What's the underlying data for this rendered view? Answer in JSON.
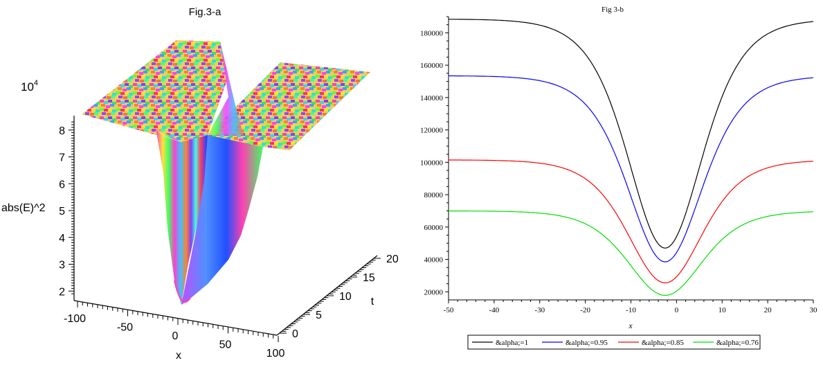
{
  "chart_data": [
    {
      "type": "surface3d",
      "title": "Fig.3-a",
      "zlabel": "abs(E)^2",
      "zscale_label": "10",
      "zscale_exp": "4",
      "xlabel": "x",
      "ylabel": "t",
      "z_ticks": [
        "2",
        "3",
        "4",
        "5",
        "6",
        "7",
        "8"
      ],
      "x_ticks": [
        "-100",
        "-50",
        "0",
        "50",
        "100"
      ],
      "t_ticks": [
        "0",
        "5",
        "10",
        "15",
        "20"
      ],
      "zlim": [
        1.8,
        8.3
      ],
      "xlim": [
        -100,
        100
      ],
      "tlim": [
        0,
        20
      ],
      "plateau_value": 8.2,
      "minimum_value": 1.8,
      "minimum_x": 0
    },
    {
      "type": "line",
      "title": "Fig 3-b",
      "xlabel": "x",
      "ylabel": "",
      "xlim": [
        -50,
        30
      ],
      "ylim": [
        15000,
        190000
      ],
      "x_ticks": [
        -50,
        -40,
        -30,
        -20,
        -10,
        0,
        10,
        20,
        30
      ],
      "y_ticks": [
        20000,
        40000,
        60000,
        80000,
        100000,
        120000,
        140000,
        160000,
        180000
      ],
      "legend_position": "bottom",
      "series": [
        {
          "name": "&alpha;=1",
          "color": "#000000",
          "plateau": 188500,
          "minimum": 47000
        },
        {
          "name": "&alpha;=0.95",
          "color": "#0000ff",
          "plateau": 153500,
          "minimum": 38500
        },
        {
          "name": "&alpha;=0.85",
          "color": "#ff0000",
          "plateau": 101500,
          "minimum": 25500
        },
        {
          "name": "&alpha;=0.76",
          "color": "#00dd00",
          "plateau": 70000,
          "minimum": 17800
        }
      ],
      "center_x": -2.5,
      "width": 11
    }
  ]
}
